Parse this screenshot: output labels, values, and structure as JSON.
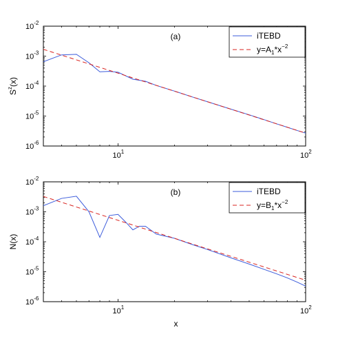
{
  "chart_data": [
    {
      "type": "line",
      "panel_label": "(a)",
      "ylabel_base": "S",
      "ylabel_sup": "z",
      "ylabel_tail": "(x)",
      "xlabel": "",
      "xscale": "log",
      "yscale": "log",
      "xlim": [
        4,
        100
      ],
      "ylim": [
        1e-06,
        0.01
      ],
      "xticks": [
        {
          "base": "10",
          "exp": "1",
          "value": 10
        },
        {
          "base": "10",
          "exp": "2",
          "value": 100
        }
      ],
      "yticks": [
        {
          "base": "10",
          "exp": "-2",
          "value": 0.01
        },
        {
          "base": "10",
          "exp": "-3",
          "value": 0.001
        },
        {
          "base": "10",
          "exp": "-4",
          "value": 0.0001
        },
        {
          "base": "10",
          "exp": "-5",
          "value": 1e-05
        },
        {
          "base": "10",
          "exp": "-6",
          "value": 1e-06
        }
      ],
      "legend_position": "top-right",
      "series": [
        {
          "name": "iTEBD",
          "style": "solid",
          "color": "#3b5bdb",
          "x": [
            4,
            5,
            6,
            7,
            8,
            9,
            10,
            12,
            14,
            16,
            20,
            25,
            30,
            40,
            50,
            60,
            70,
            80,
            90,
            100
          ],
          "y": [
            0.00065,
            0.0011,
            0.00115,
            0.0006,
            0.0003,
            0.00031,
            0.00029,
            0.00017,
            0.000145,
            0.000105,
            6.8e-05,
            4.3e-05,
            3e-05,
            1.7e-05,
            1.1e-05,
            7.6e-06,
            5.5e-06,
            4.2e-06,
            3.3e-06,
            2.7e-06
          ]
        },
        {
          "name_base": "y=A",
          "name_sub": "1",
          "name_tail": "*x",
          "name_sup": "−2",
          "style": "dashed",
          "color": "#d9231f",
          "formula": {
            "coef": 0.027,
            "power": -2
          },
          "x": [
            4,
            100
          ]
        }
      ]
    },
    {
      "type": "line",
      "panel_label": "(b)",
      "ylabel_base": "N(x)",
      "xlabel": "x",
      "xscale": "log",
      "yscale": "log",
      "xlim": [
        4,
        100
      ],
      "ylim": [
        1e-06,
        0.01
      ],
      "xticks": [
        {
          "base": "10",
          "exp": "1",
          "value": 10
        },
        {
          "base": "10",
          "exp": "2",
          "value": 100
        }
      ],
      "yticks": [
        {
          "base": "10",
          "exp": "-2",
          "value": 0.01
        },
        {
          "base": "10",
          "exp": "-3",
          "value": 0.001
        },
        {
          "base": "10",
          "exp": "-4",
          "value": 0.0001
        },
        {
          "base": "10",
          "exp": "-5",
          "value": 1e-05
        },
        {
          "base": "10",
          "exp": "-6",
          "value": 1e-06
        }
      ],
      "legend_position": "top-right",
      "series": [
        {
          "name": "iTEBD",
          "style": "solid",
          "color": "#3b5bdb",
          "x": [
            4,
            5,
            6,
            7,
            8,
            9,
            10,
            11,
            12,
            13,
            14,
            16,
            20,
            25,
            30,
            40,
            50,
            60,
            70,
            80,
            90,
            100
          ],
          "y": [
            0.0016,
            0.0028,
            0.0033,
            0.001,
            0.00014,
            0.00075,
            0.00082,
            0.00045,
            0.00025,
            0.00033,
            0.00033,
            0.00018,
            0.00013,
            8e-05,
            5.5e-05,
            2.9e-05,
            1.8e-05,
            1.2e-05,
            8.5e-06,
            6.2e-06,
            4.5e-06,
            3.3e-06
          ]
        },
        {
          "name_base": "y=B",
          "name_sub": "1",
          "name_tail": "*x",
          "name_sup": "−2",
          "style": "dashed",
          "color": "#d9231f",
          "formula": {
            "coef": 0.052,
            "power": -2
          },
          "x": [
            4,
            100
          ]
        }
      ]
    }
  ]
}
